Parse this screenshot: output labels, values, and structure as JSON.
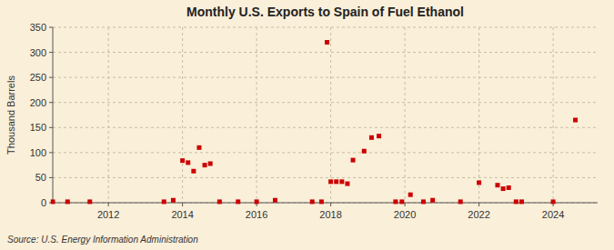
{
  "chart_data": {
    "type": "scatter",
    "title": "Monthly U.S. Exports to Spain of Fuel Ethanol",
    "ylabel": "Thousand Barrels",
    "source": "Source: U.S. Energy Information Administration",
    "color": "#cc0000",
    "marker": "square",
    "grid": true,
    "xlim": [
      2010.5,
      2025.2
    ],
    "xticks": [
      2012,
      2014,
      2016,
      2018,
      2020,
      2022,
      2024
    ],
    "ylim": [
      0,
      350
    ],
    "yticks": [
      0,
      50,
      100,
      150,
      200,
      250,
      300,
      350
    ],
    "x": [
      2010.5,
      2010.9,
      2011.5,
      2013.5,
      2013.75,
      2014.0,
      2014.15,
      2014.3,
      2014.45,
      2014.6,
      2014.75,
      2015.0,
      2015.5,
      2016.0,
      2016.5,
      2017.5,
      2017.75,
      2017.9,
      2018.0,
      2018.15,
      2018.3,
      2018.45,
      2018.6,
      2018.9,
      2019.1,
      2019.3,
      2019.75,
      2019.92,
      2020.15,
      2020.5,
      2020.75,
      2021.5,
      2022.0,
      2022.5,
      2022.65,
      2022.8,
      2023.0,
      2023.15,
      2024.0,
      2024.6
    ],
    "values": [
      2,
      2,
      2,
      2,
      5,
      84,
      80,
      63,
      110,
      75,
      78,
      2,
      2,
      2,
      5,
      2,
      2,
      320,
      42,
      42,
      42,
      38,
      85,
      103,
      130,
      133,
      2,
      2,
      16,
      2,
      5,
      2,
      40,
      35,
      28,
      30,
      2,
      2,
      2,
      165
    ]
  }
}
